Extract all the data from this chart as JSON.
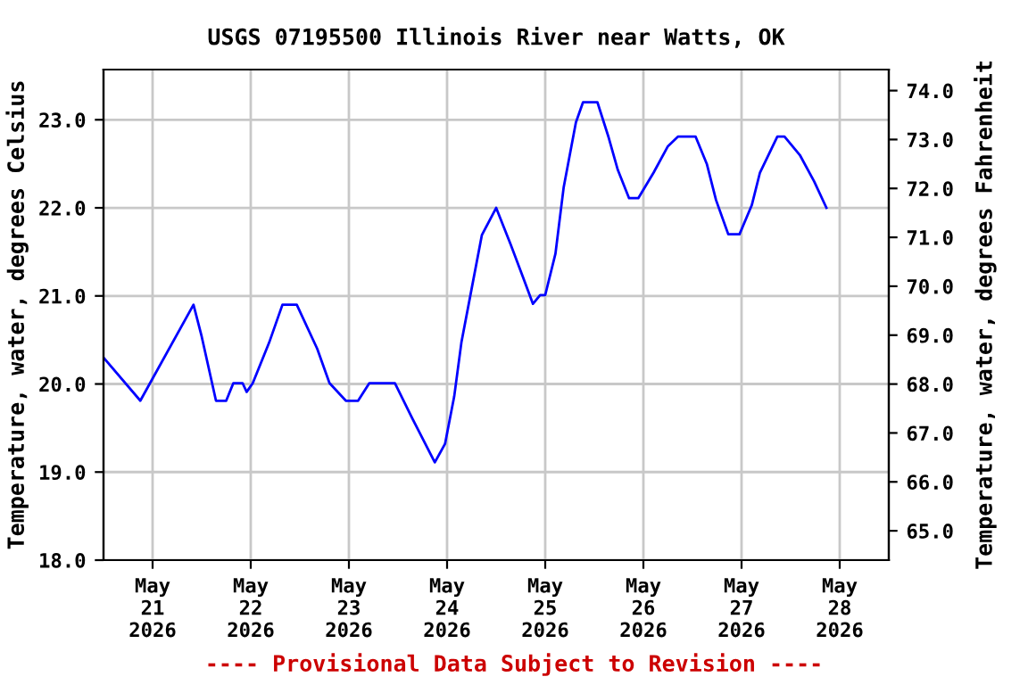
{
  "chart_data": {
    "type": "line",
    "title": "USGS 07195500 Illinois River near Watts, OK",
    "ylabel": "Temperature, water, degrees Celsius",
    "y2label": "Temperature, water, degrees Fahrenheit",
    "annotations": [
      "---- Provisional Data Subject to Revision ----"
    ],
    "x": [
      "2026-05-20T12:00",
      "2026-05-20T21:00",
      "2026-05-21T10:00",
      "2026-05-21T12:00",
      "2026-05-21T15:30",
      "2026-05-21T18:00",
      "2026-05-21T19:45",
      "2026-05-21T22:00",
      "2026-05-21T23:00",
      "2026-05-22T00:30",
      "2026-05-22T04:30",
      "2026-05-22T07:45",
      "2026-05-22T11:15",
      "2026-05-22T16:15",
      "2026-05-22T19:15",
      "2026-05-22T23:15",
      "2026-05-23T02:15",
      "2026-05-23T05:00",
      "2026-05-23T11:15",
      "2026-05-23T15:30",
      "2026-05-23T21:00",
      "2026-05-23T23:30",
      "2026-05-24T01:45",
      "2026-05-24T03:30",
      "2026-05-24T06:00",
      "2026-05-24T08:30",
      "2026-05-24T12:00",
      "2026-05-24T15:30",
      "2026-05-24T18:30",
      "2026-05-24T21:00",
      "2026-05-24T22:45",
      "2026-05-25T00:00",
      "2026-05-25T02:30",
      "2026-05-25T04:30",
      "2026-05-25T07:30",
      "2026-05-25T09:15",
      "2026-05-25T12:45",
      "2026-05-25T15:30",
      "2026-05-25T17:45",
      "2026-05-25T20:30",
      "2026-05-25T22:45",
      "2026-05-26T02:30",
      "2026-05-26T06:00",
      "2026-05-26T08:30",
      "2026-05-26T12:45",
      "2026-05-26T15:30",
      "2026-05-26T17:45",
      "2026-05-26T20:45",
      "2026-05-26T23:30",
      "2026-05-27T02:30",
      "2026-05-27T04:30",
      "2026-05-27T08:45",
      "2026-05-27T10:30",
      "2026-05-27T14:15",
      "2026-05-27T17:45",
      "2026-05-27T20:45"
    ],
    "series": [
      {
        "color": "#0000ff",
        "values": [
          20.3,
          19.81,
          20.9,
          20.54,
          19.81,
          19.81,
          20.01,
          20.01,
          19.91,
          20.01,
          20.47,
          20.9,
          20.9,
          20.4,
          20.01,
          19.81,
          19.81,
          20.01,
          20.01,
          19.61,
          19.11,
          19.32,
          19.86,
          20.47,
          21.08,
          21.69,
          22.0,
          21.59,
          21.22,
          20.91,
          21.01,
          21.01,
          21.48,
          22.23,
          22.97,
          23.2,
          23.2,
          22.8,
          22.43,
          22.11,
          22.11,
          22.4,
          22.7,
          22.81,
          22.81,
          22.5,
          22.09,
          21.7,
          21.7,
          22.03,
          22.4,
          22.81,
          22.81,
          22.6,
          22.3,
          22.0
        ]
      }
    ],
    "xlim": [
      "2026-05-20T12:00",
      "2026-05-28T12:00"
    ],
    "xticks": [
      {
        "value": "2026-05-21",
        "label": "May\n21\n2026"
      },
      {
        "value": "2026-05-22",
        "label": "May\n22\n2026"
      },
      {
        "value": "2026-05-23",
        "label": "May\n23\n2026"
      },
      {
        "value": "2026-05-24",
        "label": "May\n24\n2026"
      },
      {
        "value": "2026-05-25",
        "label": "May\n25\n2026"
      },
      {
        "value": "2026-05-26",
        "label": "May\n26\n2026"
      },
      {
        "value": "2026-05-27",
        "label": "May\n27\n2026"
      },
      {
        "value": "2026-05-28",
        "label": "May\n28\n2026"
      }
    ],
    "ylim": [
      18.0,
      23.57
    ],
    "yticks": [
      {
        "value": 18,
        "label": "18.0"
      },
      {
        "value": 19,
        "label": "19.0"
      },
      {
        "value": 20,
        "label": "20.0"
      },
      {
        "value": 21,
        "label": "21.0"
      },
      {
        "value": 22,
        "label": "22.0"
      },
      {
        "value": 23,
        "label": "23.0"
      }
    ],
    "y2lim": [
      64.4,
      74.43
    ],
    "y2ticks": [
      {
        "value": 65,
        "label": "65.0"
      },
      {
        "value": 66,
        "label": "66.0"
      },
      {
        "value": 67,
        "label": "67.0"
      },
      {
        "value": 68,
        "label": "68.0"
      },
      {
        "value": 69,
        "label": "69.0"
      },
      {
        "value": 70,
        "label": "70.0"
      },
      {
        "value": 71,
        "label": "71.0"
      },
      {
        "value": 72,
        "label": "72.0"
      },
      {
        "value": 73,
        "label": "73.0"
      },
      {
        "value": 74,
        "label": "74.0"
      }
    ],
    "grid": true,
    "legend": false,
    "marker": "none",
    "line_style": "solid"
  }
}
